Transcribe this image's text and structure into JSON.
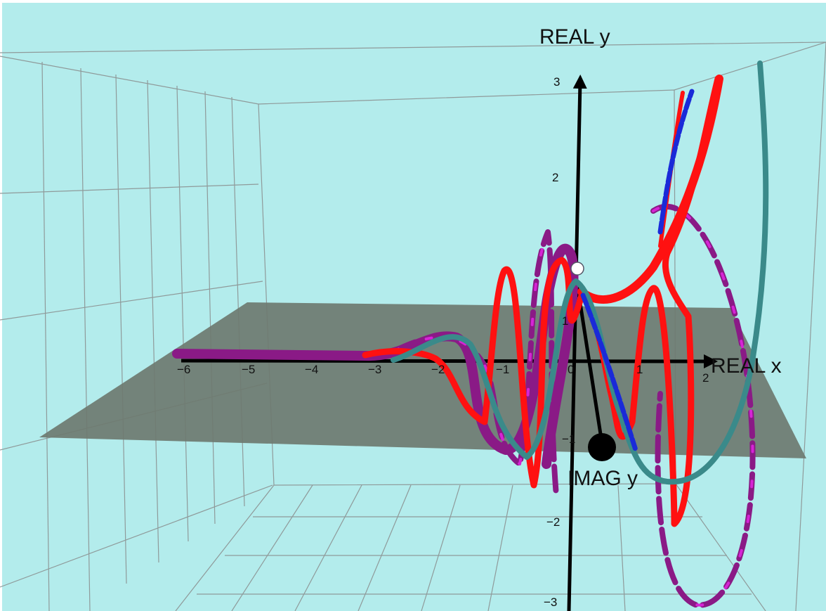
{
  "axes": {
    "real_x_label": "REAL x",
    "real_y_label": "REAL y",
    "imag_y_label": "IMAG y"
  },
  "ticks": {
    "x": [
      "−6",
      "−5",
      "−4",
      "−3",
      "−2",
      "−1",
      "0",
      "1",
      "2"
    ],
    "y": [
      "3",
      "2",
      "−2",
      "−3"
    ],
    "imag": [
      "1",
      "−1"
    ]
  },
  "colors": {
    "background": "#b3ecec",
    "plane": "#6e7a70",
    "grid": "#8f9a9a",
    "red_curve": "#ff1111",
    "teal_curve": "#3a8a8a",
    "purple_curve": "#8a1a86",
    "magenta_dash": "#d624d6",
    "blue_curve": "#1a2ad8",
    "axis": "#000000"
  }
}
